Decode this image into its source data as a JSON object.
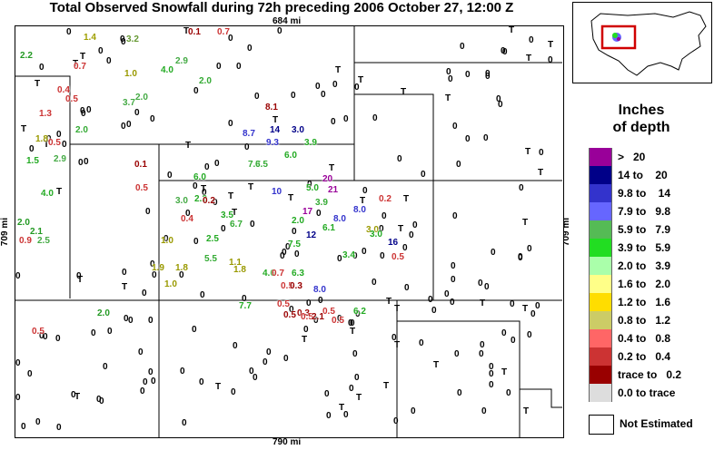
{
  "title": "Total Observed Snowfall during 72h preceding 2006 October 27, 12:00 Z",
  "distances": {
    "top": "684 mi",
    "bottom": "790 mi",
    "left": "709 mi",
    "right": "709 mi"
  },
  "legend": {
    "title_line1": "Inches",
    "title_line2": "of depth",
    "items": [
      {
        "label": ">   20",
        "color": "#990099"
      },
      {
        "label": "14 to    20",
        "color": "#000088"
      },
      {
        "label": "9.8 to    14",
        "color": "#3333cc"
      },
      {
        "label": "7.9 to   9.8",
        "color": "#6666ff"
      },
      {
        "label": "5.9 to   7.9",
        "color": "#55bb55"
      },
      {
        "label": "3.9 to   5.9",
        "color": "#22dd22"
      },
      {
        "label": "2.0 to   3.9",
        "color": "#aaffaa"
      },
      {
        "label": "1.6 to   2.0",
        "color": "#ffff88"
      },
      {
        "label": "1.2 to   1.6",
        "color": "#ffdd00"
      },
      {
        "label": "0.8 to   1.2",
        "color": "#cccc66"
      },
      {
        "label": "0.4 to   0.8",
        "color": "#ff6666"
      },
      {
        "label": "0.2 to   0.4",
        "color": "#cc3333"
      },
      {
        "label": "trace to   0.2",
        "color": "#990000"
      },
      {
        "label": "0.0 to trace",
        "color": "#dddddd"
      }
    ],
    "not_estimated": "Not Estimated"
  },
  "observations": [
    {
      "v": "0",
      "c": "#000"
    },
    {
      "v": "1.4",
      "c": "#a0a000"
    },
    {
      "v": "3.2",
      "c": "#669933"
    },
    {
      "v": "0.1",
      "c": "#990000"
    },
    {
      "v": "0.7",
      "c": "#cc3333"
    },
    {
      "v": "2.2",
      "c": "#229922"
    },
    {
      "v": "0.7",
      "c": "#cc3333"
    },
    {
      "v": "1.0",
      "c": "#999900"
    },
    {
      "v": "4.0",
      "c": "#22aa22"
    },
    {
      "v": "2.9",
      "c": "#44aa44"
    },
    {
      "v": "2.0",
      "c": "#33aa33"
    },
    {
      "v": "0.4",
      "c": "#cc3333"
    },
    {
      "v": "0.5",
      "c": "#cc3333"
    },
    {
      "v": "3.7",
      "c": "#44aa44"
    },
    {
      "v": "2.0",
      "c": "#44aa44"
    },
    {
      "v": "1.3",
      "c": "#cc3333"
    },
    {
      "v": "2.0",
      "c": "#33aa33"
    },
    {
      "v": "1.8",
      "c": "#999900"
    },
    {
      "v": "0.5",
      "c": "#cc3333"
    },
    {
      "v": "1.5",
      "c": "#22aa22"
    },
    {
      "v": "2.9",
      "c": "#44aa44"
    },
    {
      "v": "4.0",
      "c": "#22aa22"
    },
    {
      "v": "0.1",
      "c": "#990000"
    },
    {
      "v": "0.5",
      "c": "#cc3333"
    },
    {
      "v": "2.0",
      "c": "#229922"
    },
    {
      "v": "2.1",
      "c": "#229922"
    },
    {
      "v": "2.5",
      "c": "#44aa44"
    },
    {
      "v": "0.9",
      "c": "#cc3333"
    },
    {
      "v": "6.0",
      "c": "#22aa22"
    },
    {
      "v": "2.2",
      "c": "#22aa22"
    },
    {
      "v": "3.0",
      "c": "#44aa44"
    },
    {
      "v": "1.0",
      "c": "#999900"
    },
    {
      "v": "0.2",
      "c": "#990000"
    },
    {
      "v": "0.4",
      "c": "#cc3333"
    },
    {
      "v": "3.5",
      "c": "#22aa22"
    },
    {
      "v": "6.7",
      "c": "#33aa33"
    },
    {
      "v": "7.7",
      "c": "#33aa33"
    },
    {
      "v": "6.5",
      "c": "#33aa33"
    },
    {
      "v": "5.5",
      "c": "#33aa33"
    },
    {
      "v": "1.0",
      "c": "#999900"
    },
    {
      "v": "2.5",
      "c": "#22aa22"
    },
    {
      "v": "1.1",
      "c": "#999900"
    },
    {
      "v": "1.8",
      "c": "#999900"
    },
    {
      "v": "7.7",
      "c": "#22aa22"
    },
    {
      "v": "4.6",
      "c": "#22aa22"
    },
    {
      "v": "0.7",
      "c": "#cc3333"
    },
    {
      "v": "0.5",
      "c": "#cc3333"
    },
    {
      "v": "0.3",
      "c": "#990000"
    },
    {
      "v": "6.3",
      "c": "#22aa22"
    },
    {
      "v": "8.0",
      "c": "#3333cc"
    },
    {
      "v": "0.5",
      "c": "#cc3333"
    },
    {
      "v": "8.1",
      "c": "#990000"
    },
    {
      "v": "8.7",
      "c": "#3333cc"
    },
    {
      "v": "14",
      "c": "#000088"
    },
    {
      "v": "3.0",
      "c": "#000088"
    },
    {
      "v": "9.3",
      "c": "#3333cc"
    },
    {
      "v": "3.9",
      "c": "#22aa22"
    },
    {
      "v": "6.0",
      "c": "#22aa22"
    },
    {
      "v": "10",
      "c": "#3333cc"
    },
    {
      "v": "5.0",
      "c": "#22aa22"
    },
    {
      "v": "3.9",
      "c": "#33aa33"
    },
    {
      "v": "2.0",
      "c": "#22aa22"
    },
    {
      "v": "6.1",
      "c": "#22aa22"
    },
    {
      "v": "3.0",
      "c": "#999900"
    },
    {
      "v": "0.2",
      "c": "#cc3333"
    },
    {
      "v": "8.0",
      "c": "#3333cc"
    },
    {
      "v": "3.0",
      "c": "#22aa22"
    },
    {
      "v": "16",
      "c": "#000088"
    },
    {
      "v": "3.4",
      "c": "#22aa22"
    },
    {
      "v": "0.5",
      "c": "#cc3333"
    },
    {
      "v": "0.5",
      "c": "#990000"
    },
    {
      "v": "0.3",
      "c": "#990000"
    },
    {
      "v": "0.5",
      "c": "#cc3333"
    },
    {
      "v": "2.1",
      "c": "#990000"
    },
    {
      "v": "0.5",
      "c": "#cc3333"
    },
    {
      "v": "6.2",
      "c": "#22aa22"
    },
    {
      "v": "0.5",
      "c": "#cc3333"
    },
    {
      "v": "0.5",
      "c": "#cc3333"
    },
    {
      "v": "2.0",
      "c": "#229922"
    },
    {
      "v": "T",
      "c": "#000"
    },
    {
      "v": "20",
      "c": "#990099"
    },
    {
      "v": "21",
      "c": "#990099"
    },
    {
      "v": "17",
      "c": "#990099"
    },
    {
      "v": "12",
      "c": "#000088"
    },
    {
      "v": "8.0",
      "c": "#3333cc"
    },
    {
      "v": "7.5",
      "c": "#22aa22"
    },
    {
      "v": "1.9",
      "c": "#999900"
    },
    {
      "v": "1.8",
      "c": "#999900"
    }
  ]
}
